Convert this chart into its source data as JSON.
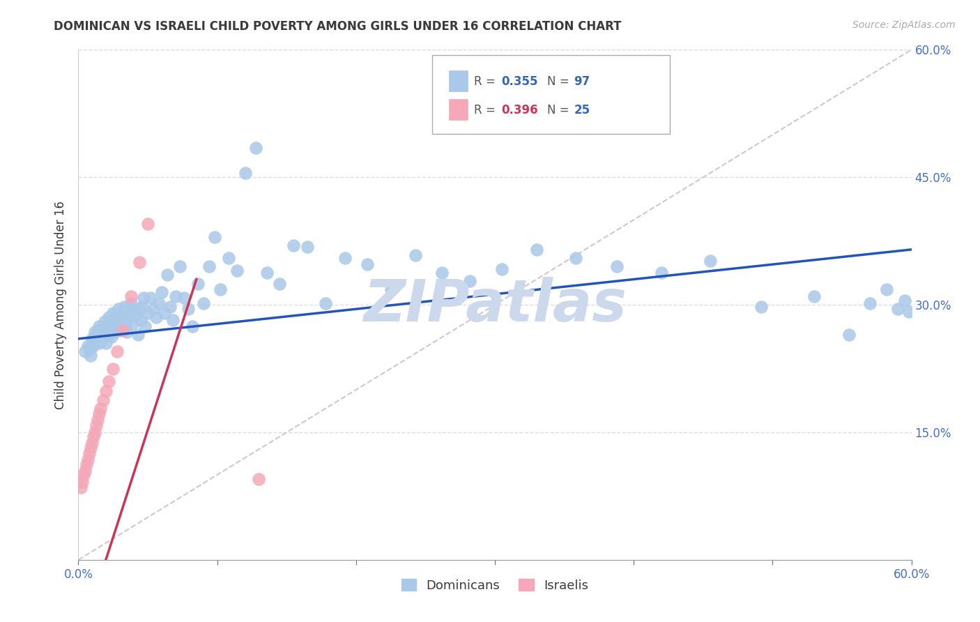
{
  "title": "DOMINICAN VS ISRAELI CHILD POVERTY AMONG GIRLS UNDER 16 CORRELATION CHART",
  "source": "Source: ZipAtlas.com",
  "ylabel": "Child Poverty Among Girls Under 16",
  "xlim": [
    0.0,
    0.6
  ],
  "ylim": [
    0.0,
    0.6
  ],
  "xtick_vals": [
    0.0,
    0.1,
    0.2,
    0.3,
    0.4,
    0.5,
    0.6
  ],
  "ytick_right_vals": [
    0.0,
    0.15,
    0.3,
    0.45,
    0.6
  ],
  "dominican_R": 0.355,
  "dominican_N": 97,
  "israeli_R": 0.396,
  "israeli_N": 25,
  "dominican_dot_color": "#aac8e8",
  "israeli_dot_color": "#f4a8b8",
  "dominican_line_color": "#2255bb",
  "israeli_line_color": "#cc3355",
  "ref_line_color": "#d0c8c8",
  "watermark": "ZIPatlas",
  "watermark_color": "#ccd8ec",
  "bg_color": "#ffffff",
  "grid_color": "#d8dde8",
  "title_color": "#3a3a3a",
  "ylabel_color": "#3a3a3a",
  "tick_color": "#4470cc",
  "legend_blue": "#3366bb",
  "legend_pink": "#cc3355",
  "dominican_x": [
    0.005,
    0.007,
    0.008,
    0.009,
    0.01,
    0.01,
    0.011,
    0.012,
    0.012,
    0.013,
    0.014,
    0.015,
    0.015,
    0.016,
    0.017,
    0.018,
    0.019,
    0.02,
    0.02,
    0.021,
    0.022,
    0.022,
    0.023,
    0.024,
    0.025,
    0.025,
    0.026,
    0.027,
    0.028,
    0.029,
    0.03,
    0.031,
    0.032,
    0.033,
    0.034,
    0.035,
    0.036,
    0.037,
    0.038,
    0.039,
    0.04,
    0.042,
    0.043,
    0.044,
    0.045,
    0.046,
    0.047,
    0.048,
    0.05,
    0.052,
    0.054,
    0.056,
    0.058,
    0.06,
    0.062,
    0.064,
    0.066,
    0.068,
    0.07,
    0.073,
    0.076,
    0.079,
    0.082,
    0.086,
    0.09,
    0.094,
    0.098,
    0.102,
    0.108,
    0.114,
    0.12,
    0.128,
    0.136,
    0.145,
    0.155,
    0.165,
    0.178,
    0.192,
    0.208,
    0.225,
    0.243,
    0.262,
    0.282,
    0.305,
    0.33,
    0.358,
    0.388,
    0.42,
    0.455,
    0.492,
    0.53,
    0.555,
    0.57,
    0.582,
    0.59,
    0.595,
    0.598
  ],
  "dominican_y": [
    0.245,
    0.252,
    0.248,
    0.24,
    0.25,
    0.26,
    0.258,
    0.255,
    0.268,
    0.262,
    0.27,
    0.255,
    0.275,
    0.265,
    0.26,
    0.272,
    0.28,
    0.255,
    0.275,
    0.27,
    0.265,
    0.285,
    0.278,
    0.262,
    0.275,
    0.29,
    0.268,
    0.285,
    0.278,
    0.295,
    0.27,
    0.288,
    0.282,
    0.298,
    0.275,
    0.268,
    0.292,
    0.285,
    0.302,
    0.278,
    0.295,
    0.288,
    0.265,
    0.295,
    0.282,
    0.298,
    0.308,
    0.275,
    0.29,
    0.308,
    0.295,
    0.285,
    0.302,
    0.315,
    0.29,
    0.335,
    0.298,
    0.282,
    0.31,
    0.345,
    0.308,
    0.295,
    0.275,
    0.325,
    0.302,
    0.345,
    0.38,
    0.318,
    0.355,
    0.34,
    0.455,
    0.485,
    0.338,
    0.325,
    0.37,
    0.368,
    0.302,
    0.355,
    0.348,
    0.318,
    0.358,
    0.338,
    0.328,
    0.342,
    0.365,
    0.355,
    0.345,
    0.338,
    0.352,
    0.298,
    0.31,
    0.265,
    0.302,
    0.318,
    0.295,
    0.305,
    0.292
  ],
  "israeli_x": [
    0.002,
    0.003,
    0.004,
    0.005,
    0.006,
    0.007,
    0.008,
    0.009,
    0.01,
    0.011,
    0.012,
    0.013,
    0.014,
    0.015,
    0.016,
    0.018,
    0.02,
    0.022,
    0.025,
    0.028,
    0.032,
    0.038,
    0.044,
    0.05,
    0.13
  ],
  "israeli_y": [
    0.085,
    0.092,
    0.1,
    0.105,
    0.112,
    0.118,
    0.125,
    0.132,
    0.138,
    0.145,
    0.15,
    0.158,
    0.165,
    0.172,
    0.178,
    0.188,
    0.198,
    0.21,
    0.225,
    0.245,
    0.27,
    0.31,
    0.35,
    0.395,
    0.095
  ]
}
